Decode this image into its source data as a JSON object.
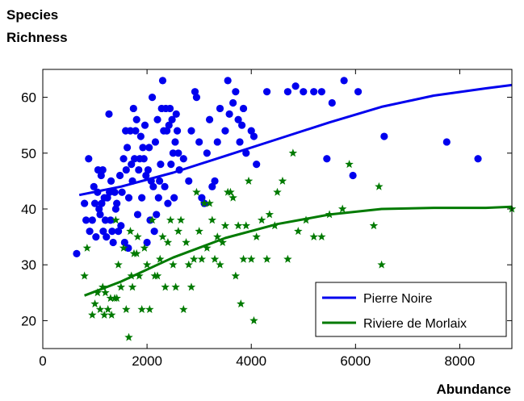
{
  "chart_data": {
    "type": "scatter",
    "ylabel_line1": "Species",
    "ylabel_line2": "Richness",
    "xlabel": "Abundance",
    "xlim": [
      0,
      9000
    ],
    "ylim": [
      15,
      65
    ],
    "xticks": [
      0,
      2000,
      4000,
      6000,
      8000
    ],
    "yticks": [
      20,
      30,
      40,
      50,
      60
    ],
    "grid": false,
    "legend_position": "bottom-right",
    "series": [
      {
        "name": "Pierre Noire",
        "color": "#0000ee",
        "marker": "circle",
        "points": [
          [
            650,
            32
          ],
          [
            800,
            41
          ],
          [
            830,
            38
          ],
          [
            880,
            49
          ],
          [
            900,
            36
          ],
          [
            950,
            38
          ],
          [
            980,
            44
          ],
          [
            1000,
            41
          ],
          [
            1020,
            35
          ],
          [
            1050,
            43
          ],
          [
            1060,
            47
          ],
          [
            1080,
            40
          ],
          [
            1100,
            39
          ],
          [
            1120,
            46
          ],
          [
            1130,
            41
          ],
          [
            1150,
            47
          ],
          [
            1160,
            36
          ],
          [
            1180,
            42
          ],
          [
            1200,
            38
          ],
          [
            1220,
            35
          ],
          [
            1240,
            42
          ],
          [
            1270,
            57
          ],
          [
            1280,
            43
          ],
          [
            1300,
            38
          ],
          [
            1310,
            45
          ],
          [
            1330,
            36
          ],
          [
            1350,
            34
          ],
          [
            1380,
            43
          ],
          [
            1400,
            40
          ],
          [
            1420,
            41
          ],
          [
            1450,
            36
          ],
          [
            1480,
            46
          ],
          [
            1500,
            37
          ],
          [
            1520,
            43
          ],
          [
            1550,
            49
          ],
          [
            1570,
            34
          ],
          [
            1590,
            54
          ],
          [
            1600,
            47
          ],
          [
            1620,
            51
          ],
          [
            1640,
            33
          ],
          [
            1650,
            42
          ],
          [
            1680,
            54
          ],
          [
            1700,
            48
          ],
          [
            1720,
            45
          ],
          [
            1740,
            58
          ],
          [
            1760,
            49
          ],
          [
            1780,
            54
          ],
          [
            1800,
            56
          ],
          [
            1820,
            39
          ],
          [
            1840,
            47
          ],
          [
            1860,
            49
          ],
          [
            1880,
            53
          ],
          [
            1900,
            42
          ],
          [
            1920,
            51
          ],
          [
            1940,
            49
          ],
          [
            1960,
            55
          ],
          [
            1980,
            46
          ],
          [
            2000,
            34
          ],
          [
            2020,
            47
          ],
          [
            2040,
            51
          ],
          [
            2060,
            38
          ],
          [
            2080,
            45
          ],
          [
            2100,
            60
          ],
          [
            2120,
            44
          ],
          [
            2140,
            36
          ],
          [
            2160,
            52
          ],
          [
            2180,
            39
          ],
          [
            2200,
            56
          ],
          [
            2220,
            42
          ],
          [
            2240,
            45
          ],
          [
            2260,
            48
          ],
          [
            2280,
            58
          ],
          [
            2300,
            63
          ],
          [
            2320,
            54
          ],
          [
            2340,
            44
          ],
          [
            2360,
            58
          ],
          [
            2380,
            54
          ],
          [
            2400,
            41
          ],
          [
            2420,
            55
          ],
          [
            2440,
            58
          ],
          [
            2460,
            48
          ],
          [
            2480,
            56
          ],
          [
            2500,
            50
          ],
          [
            2520,
            42
          ],
          [
            2540,
            52
          ],
          [
            2560,
            57
          ],
          [
            2580,
            54
          ],
          [
            2600,
            50
          ],
          [
            2620,
            47
          ],
          [
            2700,
            49
          ],
          [
            2800,
            45
          ],
          [
            2850,
            54
          ],
          [
            2920,
            61
          ],
          [
            2950,
            60
          ],
          [
            3000,
            52
          ],
          [
            3050,
            42
          ],
          [
            3100,
            41
          ],
          [
            3150,
            50
          ],
          [
            3200,
            56
          ],
          [
            3250,
            44
          ],
          [
            3300,
            45
          ],
          [
            3350,
            52
          ],
          [
            3400,
            58
          ],
          [
            3500,
            54
          ],
          [
            3550,
            63
          ],
          [
            3580,
            57
          ],
          [
            3650,
            59
          ],
          [
            3700,
            61
          ],
          [
            3750,
            56
          ],
          [
            3780,
            52
          ],
          [
            3820,
            55
          ],
          [
            3850,
            58
          ],
          [
            3900,
            50
          ],
          [
            4000,
            54
          ],
          [
            4050,
            53
          ],
          [
            4100,
            48
          ],
          [
            4300,
            61
          ],
          [
            4700,
            61
          ],
          [
            4850,
            62
          ],
          [
            5000,
            61
          ],
          [
            5200,
            61
          ],
          [
            5350,
            61
          ],
          [
            5450,
            49
          ],
          [
            5550,
            59
          ],
          [
            5780,
            63
          ],
          [
            5950,
            46
          ],
          [
            6050,
            61
          ],
          [
            6550,
            53
          ],
          [
            7750,
            52
          ],
          [
            8350,
            49
          ]
        ],
        "fit": [
          [
            700,
            42.5
          ],
          [
            1500,
            44
          ],
          [
            2500,
            46.5
          ],
          [
            3500,
            49.5
          ],
          [
            4500,
            52.5
          ],
          [
            5500,
            55.5
          ],
          [
            6500,
            58.3
          ],
          [
            7500,
            60.3
          ],
          [
            8500,
            61.6
          ],
          [
            9000,
            62.2
          ]
        ]
      },
      {
        "name": "Riviere de Morlaix",
        "color": "#007a00",
        "marker": "star",
        "points": [
          [
            800,
            28
          ],
          [
            850,
            33
          ],
          [
            950,
            21
          ],
          [
            1000,
            23
          ],
          [
            1050,
            25
          ],
          [
            1100,
            22
          ],
          [
            1150,
            26
          ],
          [
            1180,
            21
          ],
          [
            1200,
            25
          ],
          [
            1250,
            22
          ],
          [
            1300,
            24
          ],
          [
            1320,
            21
          ],
          [
            1380,
            24
          ],
          [
            1400,
            38
          ],
          [
            1420,
            24
          ],
          [
            1450,
            30
          ],
          [
            1500,
            26
          ],
          [
            1550,
            33
          ],
          [
            1600,
            22
          ],
          [
            1650,
            17
          ],
          [
            1680,
            36
          ],
          [
            1700,
            28
          ],
          [
            1720,
            26
          ],
          [
            1750,
            32
          ],
          [
            1800,
            32
          ],
          [
            1820,
            35
          ],
          [
            1850,
            28
          ],
          [
            1900,
            22
          ],
          [
            1950,
            33
          ],
          [
            2000,
            30
          ],
          [
            2050,
            22
          ],
          [
            2100,
            38
          ],
          [
            2150,
            28
          ],
          [
            2200,
            28
          ],
          [
            2250,
            31
          ],
          [
            2300,
            35
          ],
          [
            2350,
            26
          ],
          [
            2400,
            34
          ],
          [
            2450,
            38
          ],
          [
            2500,
            30
          ],
          [
            2550,
            26
          ],
          [
            2600,
            36
          ],
          [
            2650,
            38
          ],
          [
            2700,
            22
          ],
          [
            2750,
            34
          ],
          [
            2800,
            30
          ],
          [
            2850,
            26
          ],
          [
            2900,
            31
          ],
          [
            2950,
            43
          ],
          [
            3000,
            36
          ],
          [
            3050,
            31
          ],
          [
            3100,
            41
          ],
          [
            3150,
            33
          ],
          [
            3200,
            41
          ],
          [
            3250,
            38
          ],
          [
            3300,
            31
          ],
          [
            3350,
            35
          ],
          [
            3400,
            30
          ],
          [
            3450,
            34
          ],
          [
            3500,
            37
          ],
          [
            3550,
            43
          ],
          [
            3600,
            43
          ],
          [
            3650,
            42
          ],
          [
            3700,
            28
          ],
          [
            3750,
            37
          ],
          [
            3800,
            23
          ],
          [
            3850,
            31
          ],
          [
            3900,
            37
          ],
          [
            3950,
            45
          ],
          [
            4000,
            31
          ],
          [
            4050,
            20
          ],
          [
            4100,
            35
          ],
          [
            4200,
            38
          ],
          [
            4300,
            31
          ],
          [
            4350,
            39
          ],
          [
            4450,
            37
          ],
          [
            4500,
            43
          ],
          [
            4600,
            45
          ],
          [
            4700,
            31
          ],
          [
            4800,
            50
          ],
          [
            4900,
            36
          ],
          [
            5050,
            38
          ],
          [
            5200,
            35
          ],
          [
            5350,
            35
          ],
          [
            5500,
            39
          ],
          [
            5750,
            40
          ],
          [
            5880,
            48
          ],
          [
            6350,
            37
          ],
          [
            6450,
            44
          ],
          [
            6500,
            30
          ],
          [
            9000,
            40
          ]
        ],
        "fit": [
          [
            800,
            24.5
          ],
          [
            1500,
            27
          ],
          [
            2500,
            31.3
          ],
          [
            3500,
            34.8
          ],
          [
            4500,
            37.3
          ],
          [
            5500,
            39
          ],
          [
            6500,
            40
          ],
          [
            7500,
            40.2
          ],
          [
            8500,
            40.2
          ],
          [
            9000,
            40.4
          ]
        ]
      }
    ]
  }
}
